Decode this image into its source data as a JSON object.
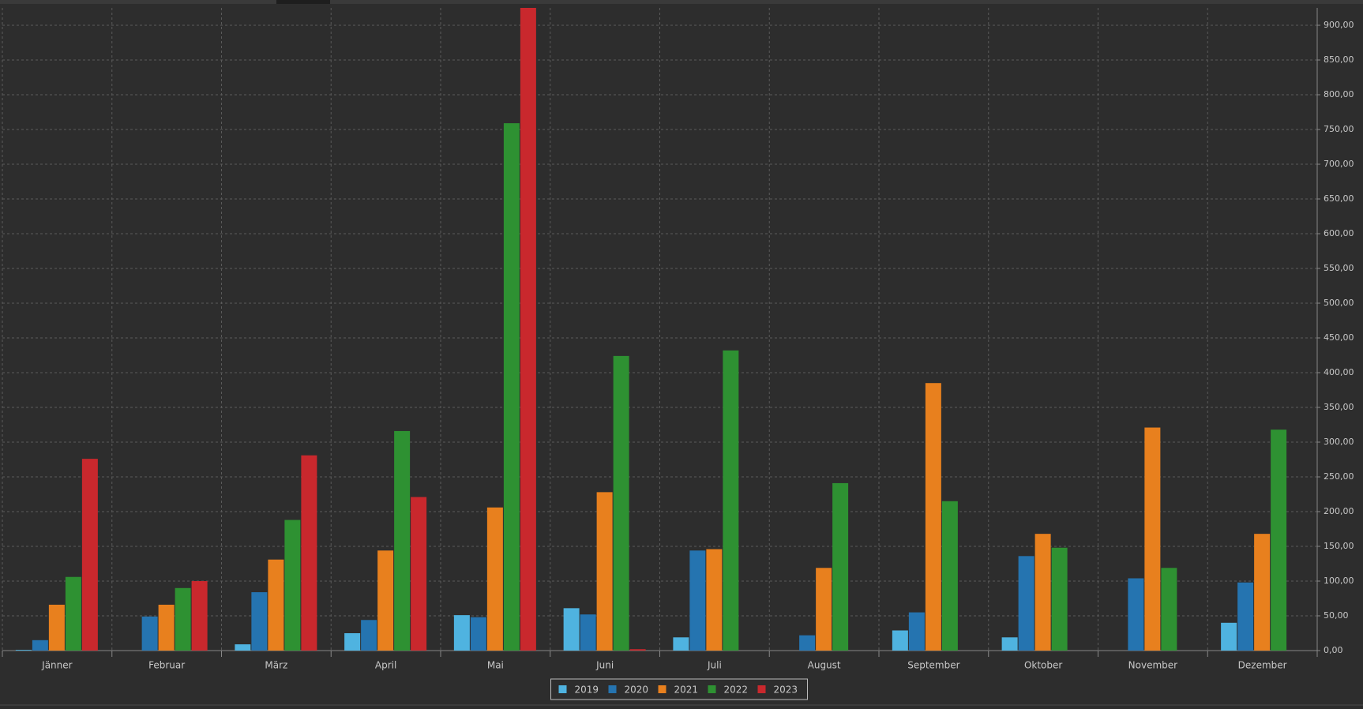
{
  "chart_data": {
    "type": "bar",
    "categories": [
      "Jänner",
      "Februar",
      "März",
      "April",
      "Mai",
      "Juni",
      "Juli",
      "August",
      "September",
      "Oktober",
      "November",
      "Dezember"
    ],
    "series": [
      {
        "name": "2019",
        "color": "#4fb3e0",
        "values": [
          1,
          0,
          9,
          25,
          51,
          61,
          19,
          0,
          29,
          19,
          0,
          40
        ]
      },
      {
        "name": "2020",
        "color": "#2574b0",
        "values": [
          15,
          49,
          84,
          44,
          48,
          52,
          144,
          22,
          55,
          136,
          104,
          98
        ]
      },
      {
        "name": "2021",
        "color": "#e8801e",
        "values": [
          66,
          66,
          131,
          144,
          206,
          228,
          146,
          119,
          385,
          168,
          321,
          168
        ]
      },
      {
        "name": "2022",
        "color": "#2e9132",
        "values": [
          106,
          90,
          188,
          316,
          759,
          424,
          432,
          241,
          215,
          148,
          119,
          318
        ]
      },
      {
        "name": "2023",
        "color": "#c9282d",
        "values": [
          276,
          100,
          281,
          221,
          925,
          2,
          0,
          0,
          0,
          0,
          0,
          0
        ]
      }
    ],
    "ylim": [
      0,
      925
    ],
    "yticks": [
      {
        "value": 0,
        "label": "0,00"
      },
      {
        "value": 50,
        "label": "50,00"
      },
      {
        "value": 100,
        "label": "100,00"
      },
      {
        "value": 150,
        "label": "150,00"
      },
      {
        "value": 200,
        "label": "200,00"
      },
      {
        "value": 250,
        "label": "250,00"
      },
      {
        "value": 300,
        "label": "300,00"
      },
      {
        "value": 350,
        "label": "350,00"
      },
      {
        "value": 400,
        "label": "400,00"
      },
      {
        "value": 450,
        "label": "450,00"
      },
      {
        "value": 500,
        "label": "500,00"
      },
      {
        "value": 550,
        "label": "550,00"
      },
      {
        "value": 600,
        "label": "600,00"
      },
      {
        "value": 650,
        "label": "650,00"
      },
      {
        "value": 700,
        "label": "700,00"
      },
      {
        "value": 750,
        "label": "750,00"
      },
      {
        "value": 800,
        "label": "800,00"
      },
      {
        "value": 850,
        "label": "850,00"
      },
      {
        "value": 900,
        "label": "900,00"
      }
    ],
    "grid": true,
    "legend": "bottom"
  }
}
